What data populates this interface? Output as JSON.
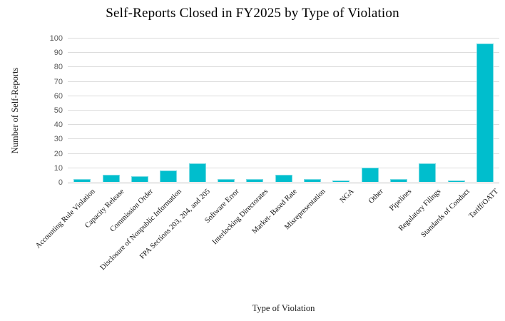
{
  "chart_data": {
    "type": "bar",
    "title": "Self-Reports Closed in FY2025 by Type of Violation",
    "xlabel": "Type of Violation",
    "ylabel": "Number of Self-Reports",
    "categories": [
      "Accounting Rule Violation",
      "Capacity Release",
      "Commission Order",
      "Disclosure of Nonpublic Information",
      "FPA Sections 203, 204, and 205",
      "Software Error",
      "Interlocking Directorates",
      "Market- Based Rate",
      "Misrepresentation",
      "NGA",
      "Other",
      "Pipelines",
      "Regulatory Filings",
      "Standards of Conduct",
      "Tariff/OATT"
    ],
    "values": [
      2,
      5,
      4,
      8,
      13,
      2,
      2,
      5,
      2,
      1,
      10,
      2,
      13,
      1,
      96
    ],
    "ylim": [
      0,
      100
    ],
    "ytick_step": 10,
    "grid": "horizontal",
    "legend_position": "none",
    "colors": {
      "bar_fill": "#00becd",
      "bar_border": "#7adbe3",
      "gridline": "#dcdcdc",
      "axis_line": "#c0c0c0",
      "y_tick_text": "#595959",
      "label_text": "#111111",
      "title_text": "#000000",
      "background": "#ffffff"
    }
  }
}
